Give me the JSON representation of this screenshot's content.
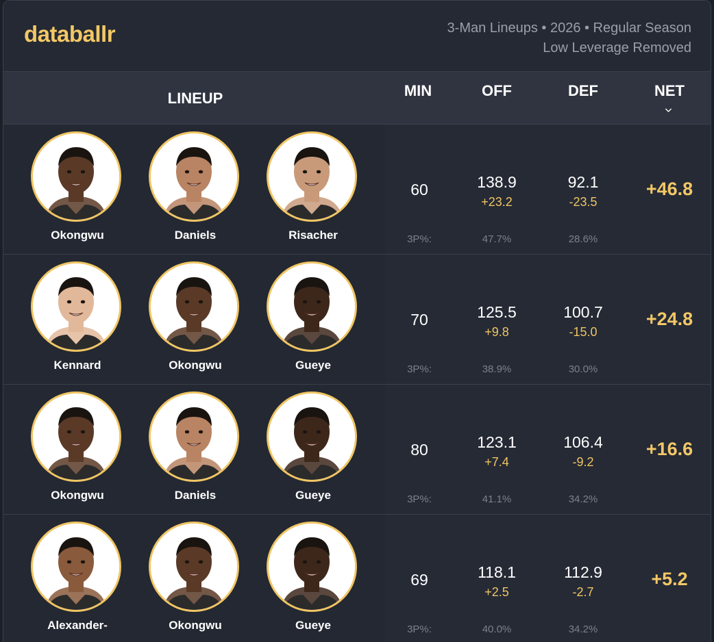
{
  "brand": {
    "logo_text": "databallr",
    "subtitle_line1": "3-Man Lineups • 2026 • Regular Season",
    "subtitle_line2": "Low Leverage Removed"
  },
  "columns": {
    "lineup": "LINEUP",
    "min": "MIN",
    "off": "OFF",
    "def": "DEF",
    "net": "NET",
    "sort_icon": "chevron-down-icon"
  },
  "colors": {
    "accent": "#f3c766",
    "ring": "#f0c563",
    "background": "#252a35"
  },
  "rows": [
    {
      "players": [
        {
          "name": "Okongwu",
          "skin": "#5a3a27"
        },
        {
          "name": "Daniels",
          "skin": "#b98463"
        },
        {
          "name": "Risacher",
          "skin": "#c89a7a"
        }
      ],
      "min": "60",
      "off": "138.9",
      "off_diff": "+23.2",
      "def": "92.1",
      "def_diff": "-23.5",
      "net": "+46.8",
      "p3_label": "3P%:",
      "off_3p": "47.7%",
      "def_3p": "28.6%"
    },
    {
      "players": [
        {
          "name": "Kennard",
          "skin": "#e2b89a"
        },
        {
          "name": "Okongwu",
          "skin": "#5a3a27"
        },
        {
          "name": "Gueye",
          "skin": "#3d271b"
        }
      ],
      "min": "70",
      "off": "125.5",
      "off_diff": "+9.8",
      "def": "100.7",
      "def_diff": "-15.0",
      "net": "+24.8",
      "p3_label": "3P%:",
      "off_3p": "38.9%",
      "def_3p": "30.0%"
    },
    {
      "players": [
        {
          "name": "Okongwu",
          "skin": "#5a3a27"
        },
        {
          "name": "Daniels",
          "skin": "#b98463"
        },
        {
          "name": "Gueye",
          "skin": "#3d271b"
        }
      ],
      "min": "80",
      "off": "123.1",
      "off_diff": "+7.4",
      "def": "106.4",
      "def_diff": "-9.2",
      "net": "+16.6",
      "p3_label": "3P%:",
      "off_3p": "41.1%",
      "def_3p": "34.2%"
    },
    {
      "players": [
        {
          "name": "Alexander-",
          "skin": "#8a5a3c"
        },
        {
          "name": "Okongwu",
          "skin": "#5a3a27"
        },
        {
          "name": "Gueye",
          "skin": "#3d271b"
        }
      ],
      "min": "69",
      "off": "118.1",
      "off_diff": "+2.5",
      "def": "112.9",
      "def_diff": "-2.7",
      "net": "+5.2",
      "p3_label": "3P%:",
      "off_3p": "40.0%",
      "def_3p": "34.2%"
    }
  ]
}
